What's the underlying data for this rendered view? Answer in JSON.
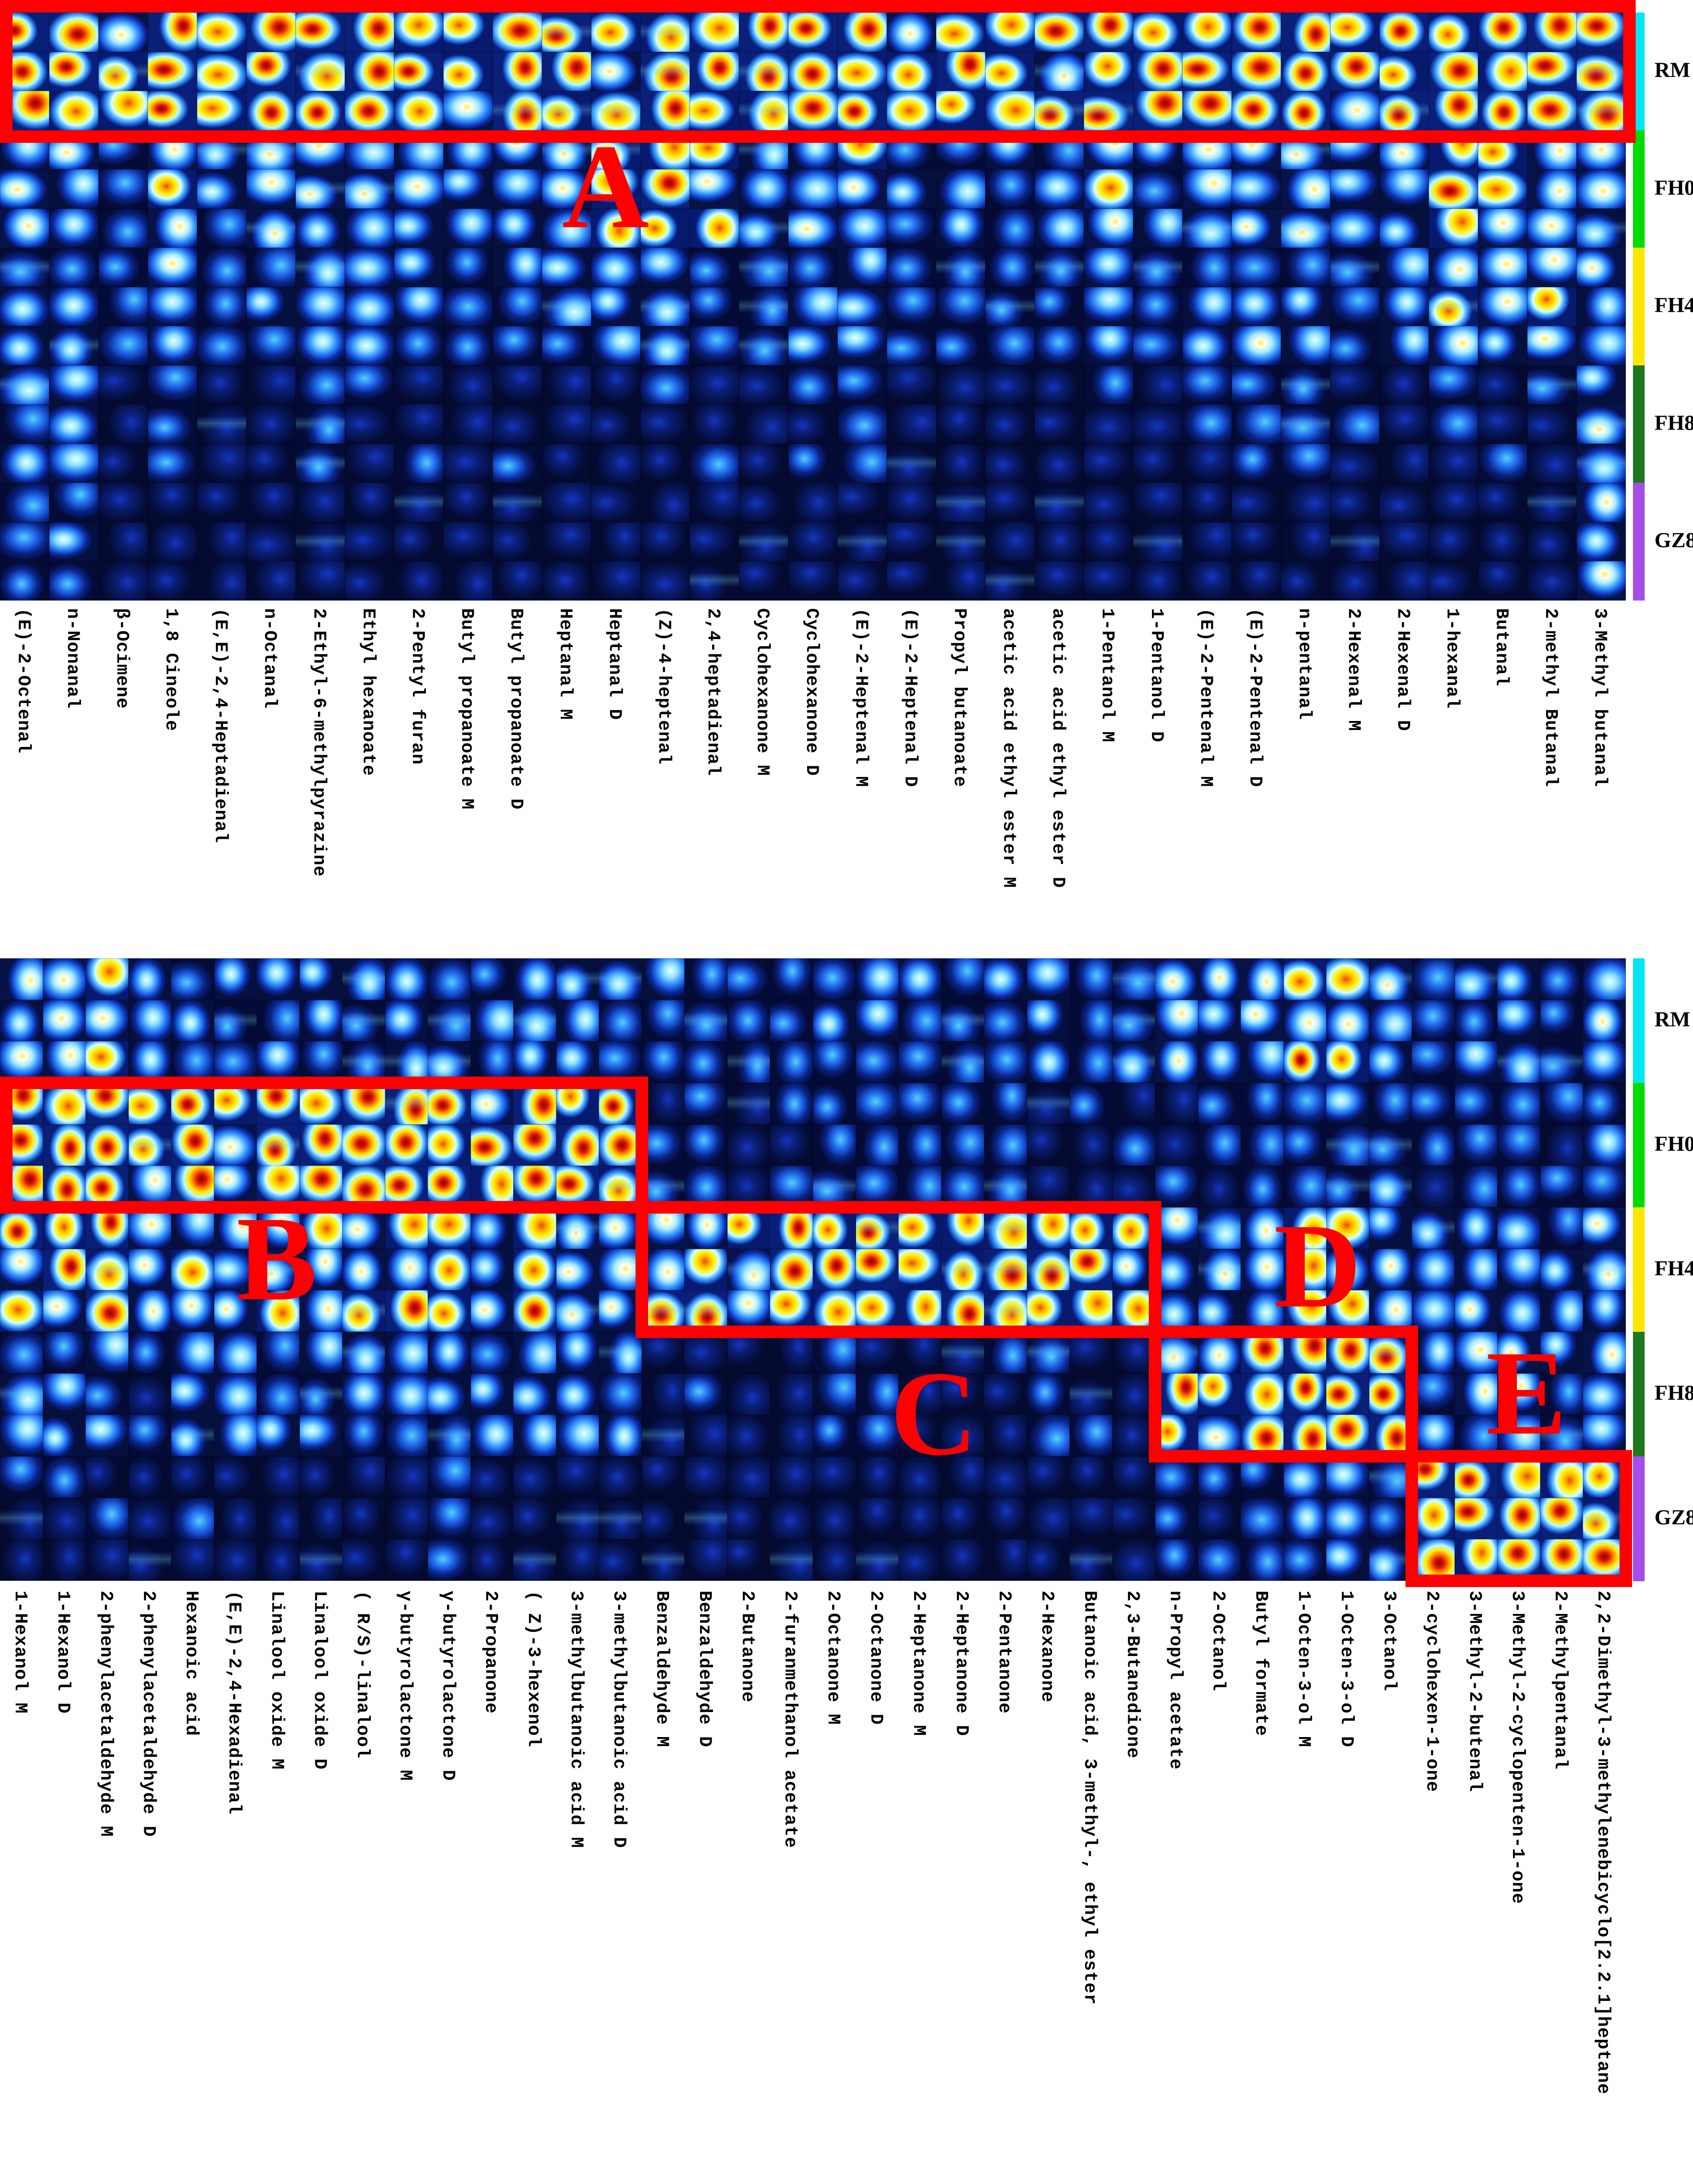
{
  "figure": {
    "description": "GC-IMS volatile compound fingerprint gallery: two heatmap panels of ion-mobility spectra tiles (columns = volatile compounds, rows = 3 replicate measurements per sample group), with red annotation boxes A-E highlighting group-specific signal regions.",
    "annotation_color": "#ff0000",
    "tile_base_color": "#040a30"
  },
  "groups": [
    {
      "label": "RM",
      "color": "#00e7f2"
    },
    {
      "label": "FH0",
      "color": "#00dc00"
    },
    {
      "label": "FH4",
      "color": "#ffe600"
    },
    {
      "label": "FH8",
      "color": "#1e781e"
    },
    {
      "label": "GZ8",
      "color": "#a44ee8"
    }
  ],
  "chart_data": {
    "type": "heatmap",
    "replicates_per_group": 3,
    "legend_position": "right",
    "panels": [
      {
        "id": "top",
        "compounds": [
          "(E)-2-Octenal",
          "n-Nonanal",
          "β-Ocimene",
          "1,8 Cineole",
          "(E,E)-2,4-Heptadienal",
          "n-Octanal",
          "2-Ethyl-6-methylpyrazine",
          "Ethyl hexanoate",
          "2-Pentyl furan",
          "Butyl propanoate M",
          "Butyl propanoate D",
          "Heptanal M",
          "Heptanal D",
          "(Z)-4-heptenal",
          "2,4-heptadienal",
          "Cyclohexanone M",
          "Cyclohexanone D",
          "(E)-2-Heptenal M",
          "(E)-2-Heptenal D",
          "Propyl butanoate",
          "acetic acid ethyl ester M",
          "acetic acid ethyl ester D",
          "1-Pentanol M",
          "1-Pentanol D",
          "(E)-2-Pentenal M",
          "(E)-2-Pentenal D",
          "n-pentanal",
          "2-Hexenal M",
          "2-Hexenal D",
          "1-hexanal",
          "Butanal",
          "2-methyl Butanal",
          "3-Methyl butanal"
        ],
        "group_row_labels": [
          "RM",
          "FH0",
          "FH4",
          "FH8",
          "GZ8"
        ],
        "intensity": {
          "group_base": {
            "RM": 0.9,
            "FH0": 0.42,
            "FH4": 0.3,
            "FH8": 0.15,
            "GZ8": 0.09
          },
          "hot_regions": [
            {
              "group": "FH0",
              "cols": [
                12,
                15
              ],
              "value": 0.7
            },
            {
              "group": "FH0",
              "cols": [
                30,
                33
              ],
              "value": 0.58
            },
            {
              "group": "FH4",
              "cols": [
                30,
                33
              ],
              "value": 0.5
            },
            {
              "group": "FH4",
              "cols": [
                12,
                13
              ],
              "value": 0.45
            },
            {
              "group": "FH8",
              "cols": [
                1,
                2
              ],
              "value": 0.3
            },
            {
              "group": "FH8",
              "cols": [
                33,
                33
              ],
              "value": 0.42
            },
            {
              "group": "GZ8",
              "cols": [
                1,
                2
              ],
              "value": 0.26
            },
            {
              "group": "GZ8",
              "cols": [
                33,
                33
              ],
              "value": 0.5
            }
          ]
        },
        "annotations": [
          {
            "letter": "A",
            "cols": [
              1,
              33
            ],
            "group": "RM",
            "letter_xy": [
              1352,
              428
            ]
          }
        ]
      },
      {
        "id": "bottom",
        "compounds": [
          "1-Hexanol M",
          "1-Hexanol D",
          "2-phenylacetaldehyde M",
          "2-phenylacetaldehyde D",
          "Hexanoic acid",
          "(E,E)-2,4-Hexadienal",
          "Linalool oxide M",
          "Linalool oxide D",
          "( R/S)-linalool",
          "γ-butyrolactone M",
          "γ-butyrolactone D",
          "2-Propanone",
          "( Z)-3-hexenol",
          "3-methylbutanoic acid M",
          "3-methylbutanoic acid D",
          "Benzaldehyde M",
          "Benzaldehyde D",
          "2-Butanone",
          "2-furanmethanol acetate",
          "2-Octanone M",
          "2-Octanone D",
          "2-Heptanone M",
          "2-Heptanone D",
          "2-Pentanone",
          "2-Hexanone",
          "Butanoic acid, 3-methyl-, ethyl ester",
          "2,3-Butanedione",
          "n-Propyl acetate",
          "2-Octanol",
          "Butyl formate",
          "1-Octen-3-ol M",
          "1-Octen-3-ol D",
          "3-Octanol",
          "2-cyclohexen-1-one",
          "3-Methyl-2-butenal",
          "3-Methyl-2-cyclopenten-1-one",
          "2-Methylpentanal",
          "2,2-Dimethyl-3-methylenebicyclo[2.2.1]heptane"
        ],
        "group_row_labels": [
          "RM",
          "FH0",
          "FH4",
          "FH8",
          "GZ8"
        ],
        "intensity": {
          "group_base": {
            "RM": 0.3,
            "FH0": 0.2,
            "FH4": 0.4,
            "FH8": 0.16,
            "GZ8": 0.12
          },
          "hot_regions": [
            {
              "group": "RM",
              "cols": [
                1,
                4
              ],
              "value": 0.45
            },
            {
              "group": "RM",
              "cols": [
                28,
                32
              ],
              "value": 0.5
            },
            {
              "group": "FH0",
              "cols": [
                1,
                15
              ],
              "value": 0.88
            },
            {
              "group": "FH4",
              "cols": [
                1,
                15
              ],
              "value": 0.58
            },
            {
              "group": "FH4",
              "cols": [
                16,
                27
              ],
              "value": 0.92
            },
            {
              "group": "FH4",
              "cols": [
                28,
                33
              ],
              "value": 0.45
            },
            {
              "group": "FH8",
              "cols": [
                1,
                15
              ],
              "value": 0.3
            },
            {
              "group": "FH8",
              "cols": [
                28,
                33
              ],
              "value": 0.88
            },
            {
              "group": "FH8",
              "cols": [
                34,
                38
              ],
              "value": 0.35
            },
            {
              "group": "GZ8",
              "cols": [
                28,
                33
              ],
              "value": 0.25
            },
            {
              "group": "GZ8",
              "cols": [
                34,
                38
              ],
              "value": 0.88
            }
          ]
        },
        "annotations": [
          {
            "letter": "B",
            "cols": [
              1,
              15
            ],
            "group": "FH0",
            "letter_xy": [
              618,
              2822
            ]
          },
          {
            "letter": "C",
            "cols": [
              16,
              27
            ],
            "group": "FH4",
            "letter_xy": [
              2085,
              3168
            ]
          },
          {
            "letter": "D",
            "cols": [
              28,
              33
            ],
            "group": "FH8",
            "letter_xy": [
              2942,
              2838
            ]
          },
          {
            "letter": "E",
            "cols": [
              34,
              38
            ],
            "group": "GZ8",
            "letter_xy": [
              3408,
              3122
            ]
          }
        ]
      }
    ]
  }
}
